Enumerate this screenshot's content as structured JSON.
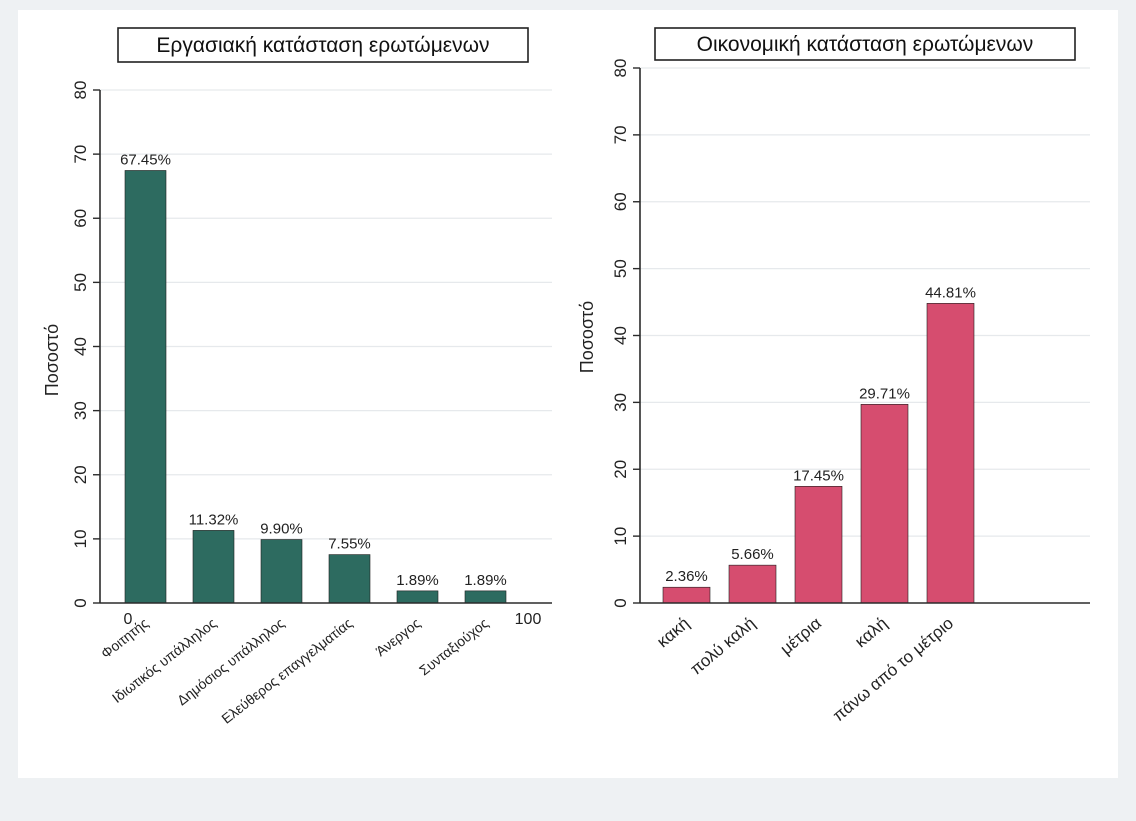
{
  "chart_data": [
    {
      "type": "bar",
      "title": "Εργασιακή κατάσταση ερωτώμενων",
      "ylabel": "Ποσοστό",
      "xlabel": "",
      "ylim": [
        0,
        80
      ],
      "yticks": [
        0,
        10,
        20,
        30,
        40,
        50,
        60,
        70,
        80
      ],
      "categories": [
        "Φοιτητής",
        "Ιδιωτικός υπάλληλος",
        "Δημόσιος υπάλληλος",
        "Ελεύθερος επαγγελματίας",
        "Άνεργος",
        "Συνταξιούχος"
      ],
      "values": [
        67.45,
        11.32,
        9.9,
        7.55,
        1.89,
        1.89
      ],
      "value_labels": [
        "67.45%",
        "11.32%",
        "9.90%",
        "7.55%",
        "1.89%",
        "1.89%"
      ],
      "x_range_labels": [
        "0",
        "100"
      ],
      "bar_color": "#2d6b60",
      "grid": true
    },
    {
      "type": "bar",
      "title": "Οικονομική κατάσταση ερωτώμενων",
      "ylabel": "Ποσοστό",
      "xlabel": "",
      "ylim": [
        0,
        80
      ],
      "yticks": [
        0,
        10,
        20,
        30,
        40,
        50,
        60,
        70,
        80
      ],
      "categories": [
        "κακή",
        "πολύ καλή",
        "μέτρια",
        "καλή",
        "πάνω από το μέτριο"
      ],
      "values": [
        2.36,
        5.66,
        17.45,
        29.71,
        44.81
      ],
      "value_labels": [
        "2.36%",
        "5.66%",
        "17.45%",
        "29.71%",
        "44.81%"
      ],
      "bar_color": "#d64d6f",
      "grid": true
    }
  ]
}
